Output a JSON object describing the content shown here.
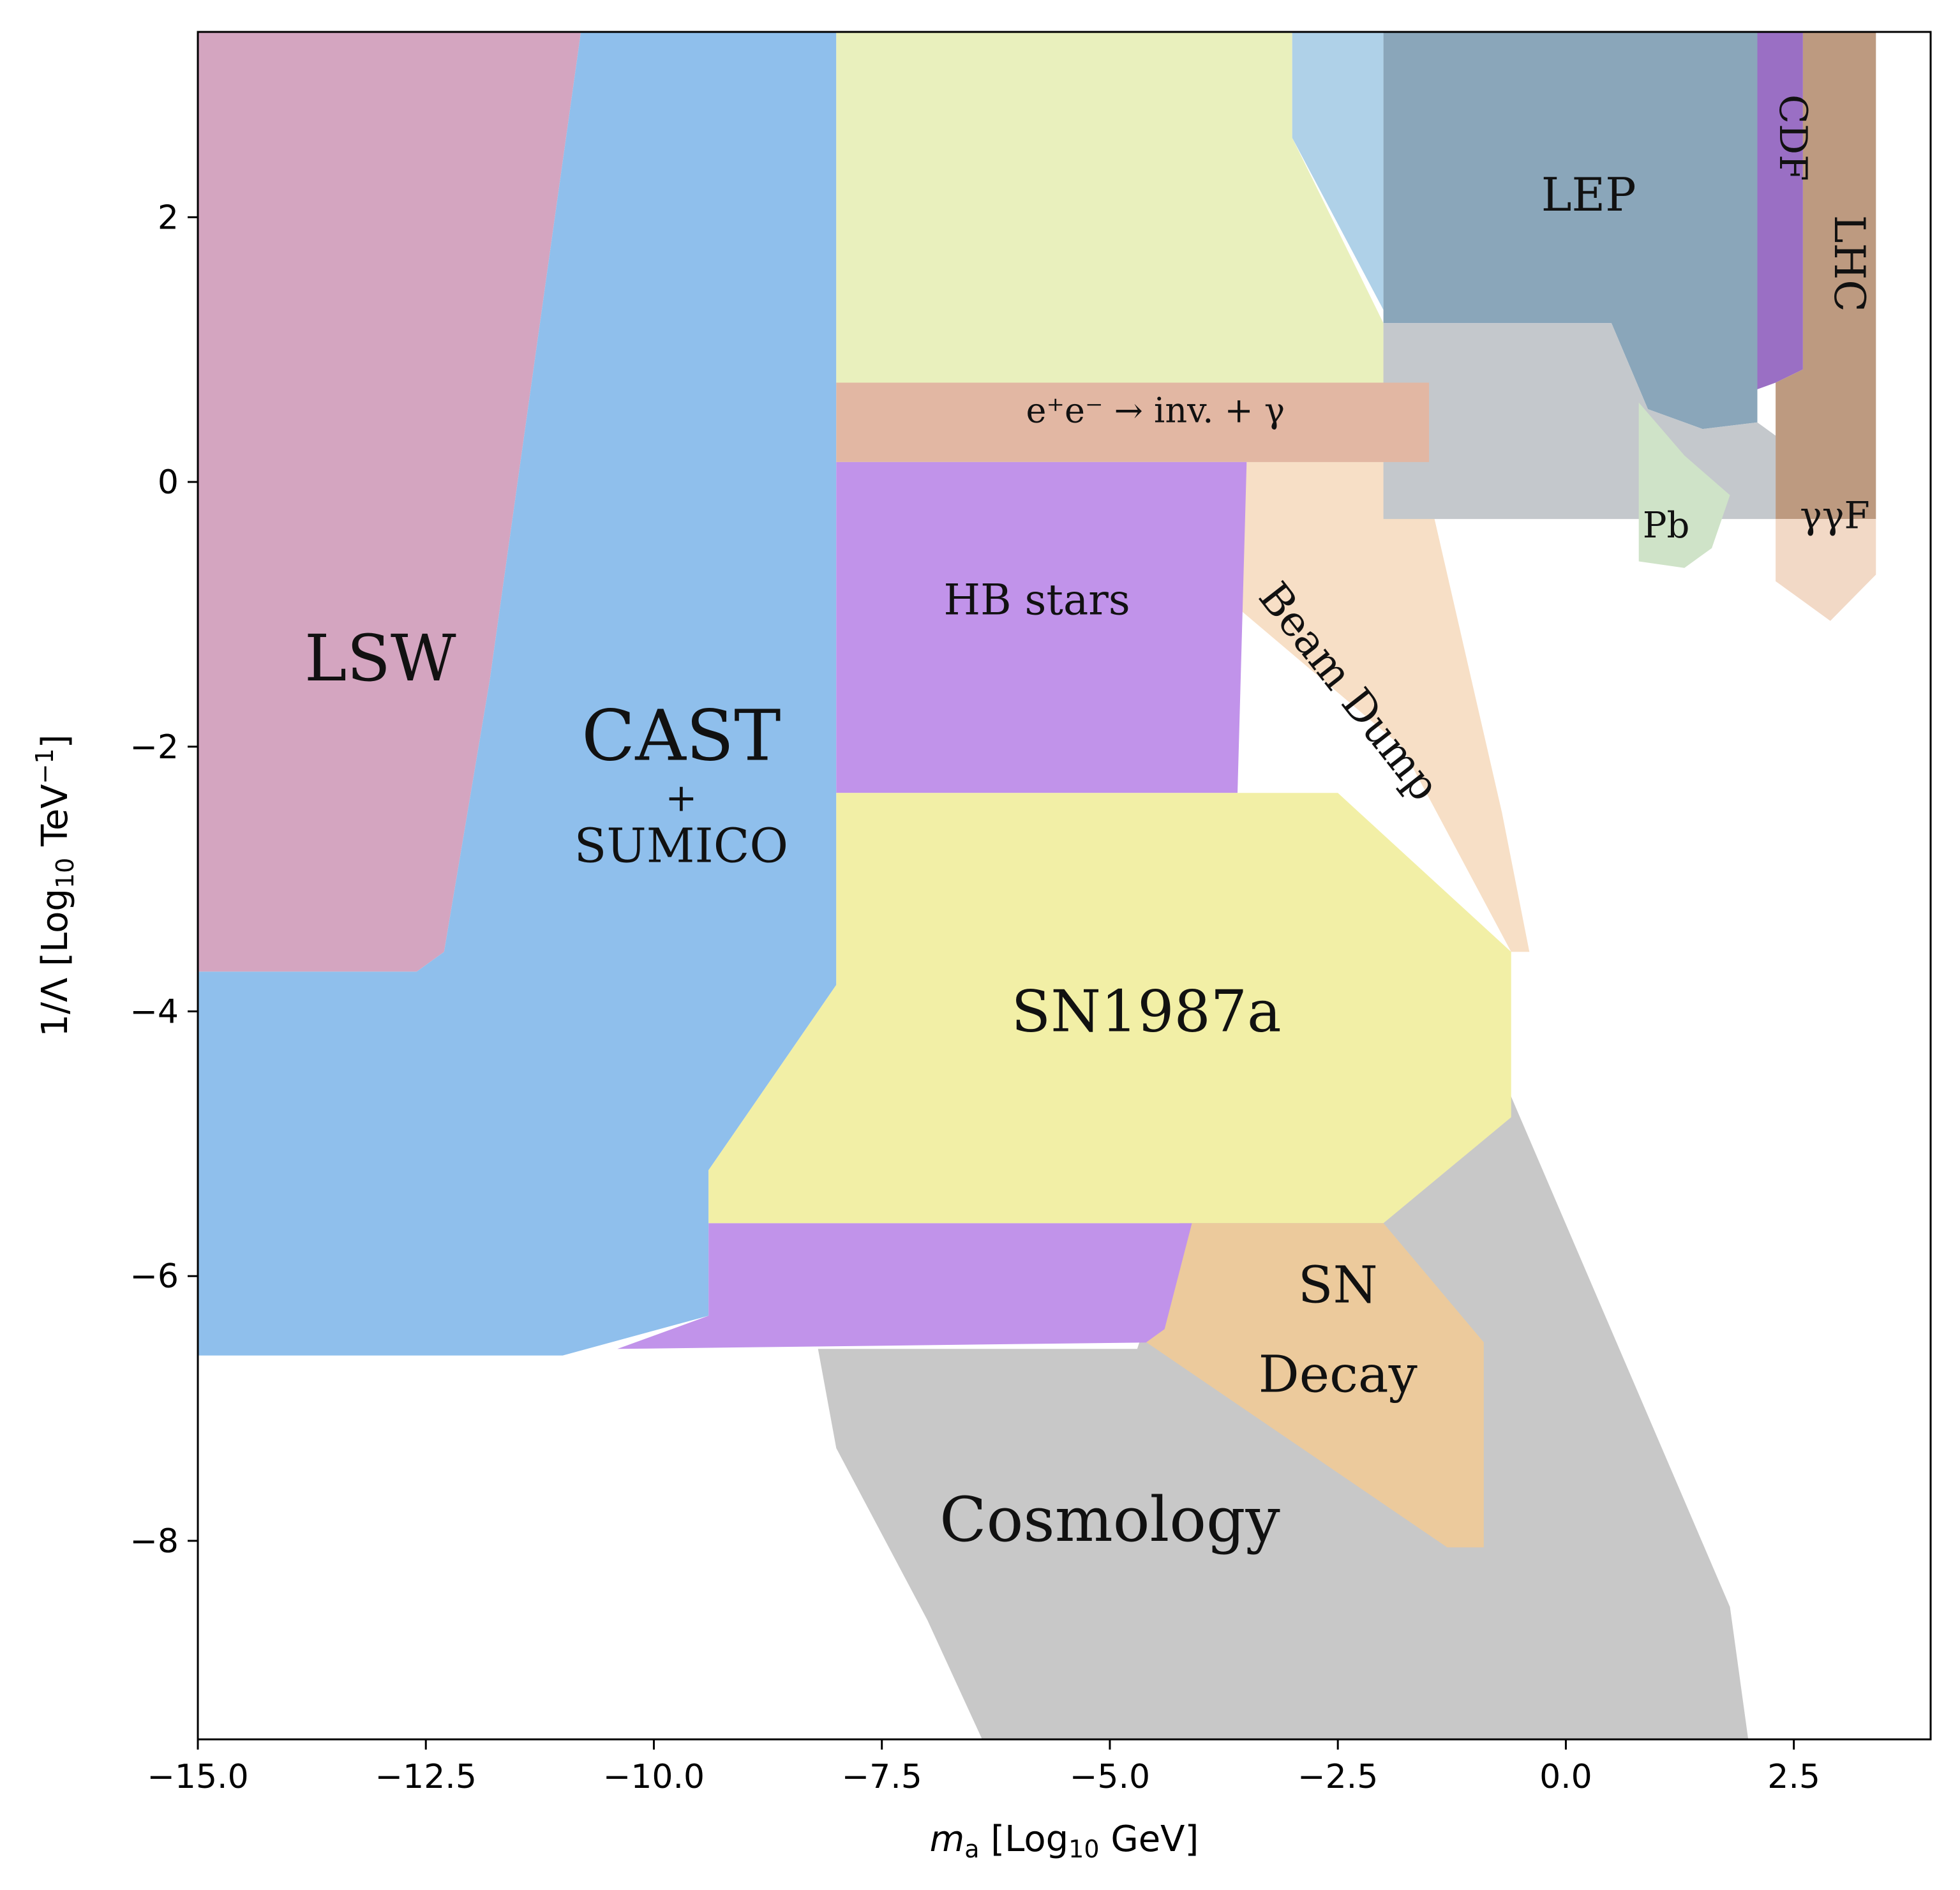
{
  "chart_data": {
    "type": "area",
    "title": "",
    "xlabel": "m_a [Log10 GeV]",
    "ylabel": "1/Λ [Log10 TeV^-1]",
    "xlim": [
      -15.0,
      4.0
    ],
    "ylim": [
      -9.5,
      3.4
    ],
    "grid": false,
    "x_ticks": [
      {
        "value": -15.0,
        "label": "−15.0"
      },
      {
        "value": -12.5,
        "label": "−12.5"
      },
      {
        "value": -10.0,
        "label": "−10.0"
      },
      {
        "value": -7.5,
        "label": "−7.5"
      },
      {
        "value": -5.0,
        "label": "−5.0"
      },
      {
        "value": -2.5,
        "label": "−2.5"
      },
      {
        "value": 0.0,
        "label": "0.0"
      },
      {
        "value": 2.5,
        "label": "2.5"
      }
    ],
    "y_ticks": [
      {
        "value": 2,
        "label": "2"
      },
      {
        "value": 0,
        "label": "0"
      },
      {
        "value": -2,
        "label": "−2"
      },
      {
        "value": -4,
        "label": "−4"
      },
      {
        "value": -6,
        "label": "−6"
      },
      {
        "value": -8,
        "label": "−8"
      }
    ],
    "regions": [
      {
        "id": "cosmology",
        "label_lines": [
          "Cosmology"
        ],
        "color": "#c8c8c8",
        "label_at": [
          -5.0,
          -8.0
        ],
        "label_size": 96,
        "points": [
          [
            -8.2,
            -6.55
          ],
          [
            -4.7,
            -6.55
          ],
          [
            -3.6,
            -4.3
          ],
          [
            -3.2,
            -2.8
          ],
          [
            -1.0,
            -4.0
          ],
          [
            1.8,
            -8.5
          ],
          [
            2.0,
            -9.5
          ],
          [
            -6.4,
            -9.5
          ],
          [
            -7.0,
            -8.6
          ],
          [
            -8.0,
            -7.3
          ]
        ]
      },
      {
        "id": "beam-dump",
        "label_lines": [
          "Beam Dump"
        ],
        "color": "#f7dfc6",
        "label_at": [
          -2.5,
          -1.65
        ],
        "label_size": 66,
        "label_rotate": 52,
        "points": [
          [
            -3.5,
            0.15
          ],
          [
            -2.5,
            1.5
          ],
          [
            -1.8,
            0.8
          ],
          [
            -0.7,
            -2.5
          ],
          [
            -0.4,
            -3.55
          ],
          [
            -0.6,
            -3.55
          ],
          [
            -1.8,
            -2.0
          ],
          [
            -3.6,
            -0.95
          ]
        ]
      },
      {
        "id": "lsw",
        "label_lines": [
          "LSW"
        ],
        "color": "#d4a5c0",
        "label_at": [
          -13.0,
          -1.5
        ],
        "label_size": 100,
        "points": [
          [
            -15.0,
            3.4
          ],
          [
            -10.8,
            3.4
          ],
          [
            -11.8,
            -1.5
          ],
          [
            -12.3,
            -3.55
          ],
          [
            -12.6,
            -3.7
          ],
          [
            -15.0,
            -3.7
          ]
        ]
      },
      {
        "id": "cast-sumico",
        "label_lines": [
          "CAST",
          "+",
          "SUMICO"
        ],
        "color": "#8fbfec",
        "label_at": [
          -9.7,
          -2.1
        ],
        "label_sizes": [
          110,
          60,
          74
        ],
        "label_gap": 80,
        "points": [
          [
            -10.8,
            3.4
          ],
          [
            -8.0,
            3.4
          ],
          [
            -8.0,
            -3.8
          ],
          [
            -9.4,
            -5.2
          ],
          [
            -9.4,
            -6.3
          ],
          [
            -11.0,
            -6.6
          ],
          [
            -15.0,
            -6.6
          ],
          [
            -15.0,
            -3.7
          ],
          [
            -12.6,
            -3.7
          ],
          [
            -12.3,
            -3.55
          ],
          [
            -11.8,
            -1.5
          ]
        ]
      },
      {
        "id": "upper-yellow",
        "label_lines": [],
        "color": "#e9f0bd",
        "label_at": [
          0,
          0
        ],
        "label_size": 0,
        "points": [
          [
            -8.0,
            3.4
          ],
          [
            -3.0,
            3.4
          ],
          [
            -3.0,
            2.6
          ],
          [
            -2.0,
            1.2
          ],
          [
            -2.0,
            0.75
          ],
          [
            -8.0,
            0.75
          ]
        ]
      },
      {
        "id": "lep-halo",
        "label_lines": [],
        "color": "#afd1e8",
        "label_at": [
          0,
          0
        ],
        "label_size": 0,
        "points": [
          [
            -3.0,
            3.4
          ],
          [
            -2.0,
            3.4
          ],
          [
            -2.0,
            1.3
          ],
          [
            -3.0,
            2.6
          ]
        ]
      },
      {
        "id": "lep",
        "label_lines": [
          "LEP"
        ],
        "color": "#8aa6ba",
        "label_at": [
          0.25,
          2.05
        ],
        "label_size": 72,
        "points": [
          [
            -2.0,
            3.4
          ],
          [
            2.1,
            3.4
          ],
          [
            2.1,
            0.45
          ],
          [
            1.5,
            0.4
          ],
          [
            0.9,
            0.55
          ],
          [
            0.5,
            1.2
          ],
          [
            -1.5,
            1.2
          ],
          [
            -2.0,
            1.2
          ]
        ]
      },
      {
        "id": "gray-box",
        "label_lines": [],
        "color": "#c4c8cc",
        "label_at": [
          0,
          0
        ],
        "label_size": 0,
        "points": [
          [
            -2.0,
            1.2
          ],
          [
            -1.5,
            1.2
          ],
          [
            0.5,
            1.2
          ],
          [
            0.9,
            0.55
          ],
          [
            1.5,
            0.4
          ],
          [
            2.1,
            0.45
          ],
          [
            2.3,
            0.35
          ],
          [
            2.3,
            -0.28
          ],
          [
            -2.0,
            -0.28
          ]
        ]
      },
      {
        "id": "pb",
        "label_lines": [
          "Pb"
        ],
        "color": "#cfe3c8",
        "label_at": [
          1.1,
          -0.42
        ],
        "label_size": 56,
        "points": [
          [
            0.8,
            0.6
          ],
          [
            1.3,
            0.2
          ],
          [
            1.8,
            -0.1
          ],
          [
            1.6,
            -0.5
          ],
          [
            1.3,
            -0.65
          ],
          [
            0.8,
            -0.6
          ]
        ]
      },
      {
        "id": "cdf",
        "label_lines": [
          "CDF"
        ],
        "color": "#9a6fc4",
        "label_at": [
          2.35,
          2.6
        ],
        "label_size": 60,
        "label_rotate": 90,
        "points": [
          [
            2.1,
            3.4
          ],
          [
            2.6,
            3.4
          ],
          [
            2.6,
            0.85
          ],
          [
            2.3,
            0.75
          ],
          [
            2.1,
            0.7
          ]
        ]
      },
      {
        "id": "lhc",
        "label_lines": [
          "LHC"
        ],
        "color": "#bd9a80",
        "label_at": [
          2.95,
          1.65
        ],
        "label_size": 66,
        "label_rotate": 90,
        "points": [
          [
            2.6,
            3.4
          ],
          [
            3.4,
            3.4
          ],
          [
            3.4,
            -0.28
          ],
          [
            2.3,
            -0.28
          ],
          [
            2.3,
            0.75
          ],
          [
            2.6,
            0.85
          ]
        ]
      },
      {
        "id": "gammagamma-f",
        "label_lines": [
          "γγF"
        ],
        "color": "#f2d9c6",
        "label_at": [
          2.95,
          -0.35
        ],
        "label_size": 58,
        "points": [
          [
            2.3,
            -0.28
          ],
          [
            3.4,
            -0.28
          ],
          [
            3.4,
            -0.7
          ],
          [
            2.9,
            -1.05
          ],
          [
            2.5,
            -0.85
          ],
          [
            2.3,
            -0.75
          ]
        ]
      },
      {
        "id": "ee-inv-gamma",
        "label_lines": [
          "e⁺e⁻ → inv. + γ"
        ],
        "color": "#e2b7a3",
        "label_at": [
          -4.5,
          0.45
        ],
        "label_size": 54,
        "points": [
          [
            -8.0,
            0.75
          ],
          [
            -1.5,
            0.75
          ],
          [
            -1.5,
            0.15
          ],
          [
            -8.0,
            0.15
          ]
        ]
      },
      {
        "id": "hb-stars",
        "label_lines": [
          "HB stars"
        ],
        "color": "#c193ea",
        "label_at": [
          -5.8,
          -1.0
        ],
        "label_size": 66,
        "points": [
          [
            -8.0,
            0.15
          ],
          [
            -3.5,
            0.15
          ],
          [
            -3.6,
            -2.35
          ],
          [
            -8.0,
            -2.35
          ]
        ]
      },
      {
        "id": "hb-lower-band",
        "label_lines": [],
        "color": "#c193ea",
        "label_at": [
          0,
          0
        ],
        "label_size": 0,
        "points": [
          [
            -9.4,
            -5.6
          ],
          [
            -4.1,
            -5.6
          ],
          [
            -4.4,
            -6.5
          ],
          [
            -10.4,
            -6.55
          ],
          [
            -9.4,
            -6.3
          ]
        ]
      },
      {
        "id": "sn1987a",
        "label_lines": [
          "SN1987a"
        ],
        "color": "#f2efa6",
        "label_at": [
          -4.6,
          -4.15
        ],
        "label_size": 90,
        "points": [
          [
            -8.0,
            -2.35
          ],
          [
            -2.5,
            -2.35
          ],
          [
            -0.6,
            -3.55
          ],
          [
            -0.6,
            -4.8
          ],
          [
            -2.0,
            -5.6
          ],
          [
            -9.4,
            -5.6
          ],
          [
            -9.4,
            -5.2
          ],
          [
            -8.0,
            -3.8
          ]
        ]
      },
      {
        "id": "sn-decay",
        "label_lines": [
          "SN",
          "Decay"
        ],
        "color": "#ecca9c",
        "label_at": [
          -2.5,
          -6.2
        ],
        "label_sizes": [
          80,
          80
        ],
        "label_gap": 140,
        "points": [
          [
            -4.1,
            -5.6
          ],
          [
            -2.0,
            -5.6
          ],
          [
            -0.9,
            -6.5
          ],
          [
            -0.9,
            -8.05
          ],
          [
            -1.3,
            -8.05
          ],
          [
            -4.6,
            -6.5
          ],
          [
            -4.4,
            -6.4
          ]
        ]
      }
    ]
  }
}
